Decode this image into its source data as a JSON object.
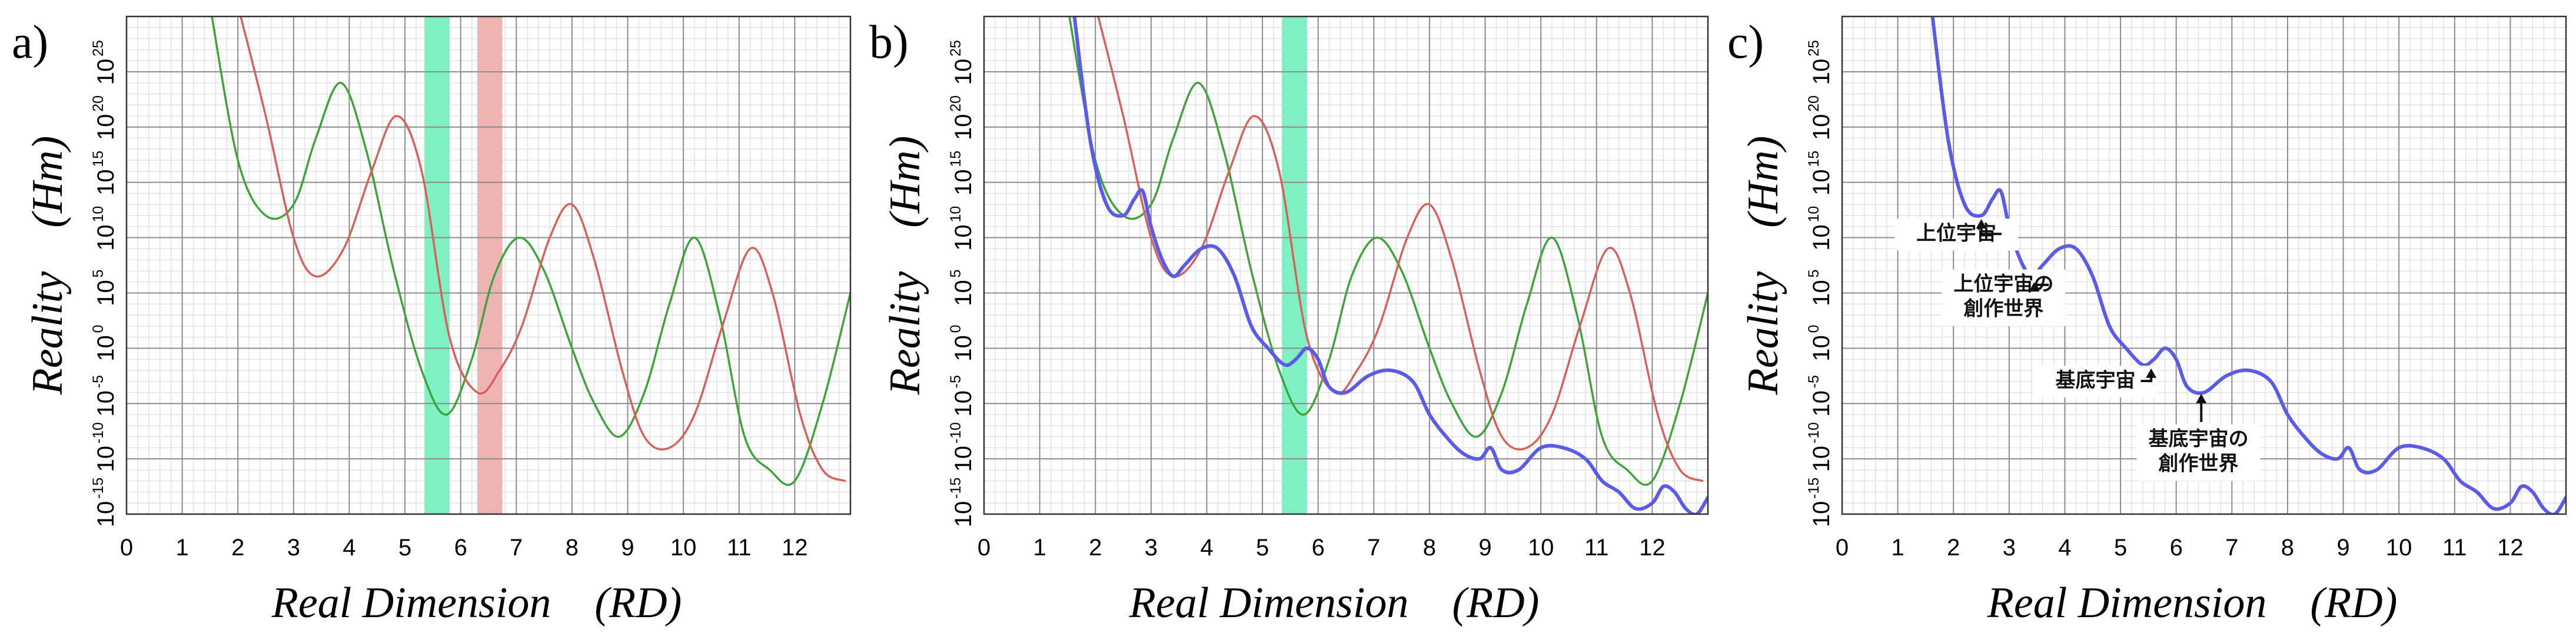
{
  "colors": {
    "red": "#d9605a",
    "green": "#3da33a",
    "blue": "#5b5bea",
    "green_band": "#7ef0c2",
    "red_band": "#eeb3b3",
    "grid_major": "#8c8c8c",
    "grid_minor": "#e2e2e2"
  },
  "chart_data": [
    {
      "type": "line",
      "panel_label": "a)",
      "xlabel": "Real Dimension　(RD)",
      "ylabel": "Reality　(Hm)",
      "xlim": [
        0,
        13
      ],
      "ylim": [
        -15,
        30
      ],
      "y_log_scale": true,
      "grid": true,
      "x_ticks": [
        "0",
        "1",
        "2",
        "3",
        "4",
        "5",
        "6",
        "7",
        "8",
        "9",
        "10",
        "11",
        "12"
      ],
      "y_ticks": [
        {
          "base": "10",
          "exp": "-15"
        },
        {
          "base": "10",
          "exp": "-10"
        },
        {
          "base": "10",
          "exp": "-5"
        },
        {
          "base": "10",
          "exp": "0"
        },
        {
          "base": "10",
          "exp": "5"
        },
        {
          "base": "10",
          "exp": "10"
        },
        {
          "base": "10",
          "exp": "15"
        },
        {
          "base": "10",
          "exp": "20"
        },
        {
          "base": "10",
          "exp": "25"
        }
      ],
      "bands": [
        {
          "x0": 5.35,
          "x1": 5.8,
          "color": "green_band"
        },
        {
          "x0": 6.3,
          "x1": 6.75,
          "color": "red_band"
        }
      ],
      "series": [
        {
          "color": "green",
          "x": [
            1.5,
            2,
            2.5,
            3,
            3.4,
            3.85,
            4.3,
            4.8,
            5.3,
            5.75,
            6.2,
            6.6,
            7.05,
            7.5,
            8,
            8.4,
            8.85,
            9.3,
            9.75,
            10.2,
            10.65,
            11.1,
            11.55,
            12,
            12.5,
            13
          ],
          "y": [
            31,
            17,
            12,
            13,
            19,
            24,
            18,
            7,
            -2,
            -6,
            -1,
            6.5,
            10,
            7,
            0,
            -5,
            -8,
            -4,
            4,
            10,
            3,
            -8,
            -11,
            -12,
            -5,
            5
          ]
        },
        {
          "color": "red",
          "x": [
            2,
            2.5,
            3,
            3.4,
            3.9,
            4.4,
            4.85,
            5.3,
            5.8,
            6.3,
            6.7,
            7.1,
            7.6,
            8,
            8.4,
            8.9,
            9.3,
            9.75,
            10.2,
            10.7,
            11.2,
            11.6,
            12.1,
            12.5,
            12.9
          ],
          "y": [
            31,
            21,
            10,
            6.5,
            9,
            16,
            21,
            16,
            1,
            -4,
            -2,
            2,
            10,
            13,
            8,
            -2,
            -8,
            -9,
            -6,
            2,
            9,
            5,
            -6,
            -11,
            -12
          ]
        }
      ],
      "annotations": []
    },
    {
      "type": "line",
      "panel_label": "b)",
      "xlabel": "Real Dimension　(RD)",
      "ylabel": "Reality　(Hm)",
      "xlim": [
        0,
        13
      ],
      "ylim": [
        -15,
        30
      ],
      "y_log_scale": true,
      "grid": true,
      "x_ticks": [
        "0",
        "1",
        "2",
        "3",
        "4",
        "5",
        "6",
        "7",
        "8",
        "9",
        "10",
        "11",
        "12"
      ],
      "y_ticks": [
        {
          "base": "10",
          "exp": "-15"
        },
        {
          "base": "10",
          "exp": "-10"
        },
        {
          "base": "10",
          "exp": "-5"
        },
        {
          "base": "10",
          "exp": "0"
        },
        {
          "base": "10",
          "exp": "5"
        },
        {
          "base": "10",
          "exp": "10"
        },
        {
          "base": "10",
          "exp": "15"
        },
        {
          "base": "10",
          "exp": "20"
        },
        {
          "base": "10",
          "exp": "25"
        }
      ],
      "bands": [
        {
          "x0": 5.35,
          "x1": 5.8,
          "color": "green_band"
        }
      ],
      "series": [
        {
          "color": "green",
          "x": [
            1.5,
            2,
            2.5,
            3,
            3.4,
            3.85,
            4.3,
            4.8,
            5.3,
            5.75,
            6.2,
            6.6,
            7.05,
            7.5,
            8,
            8.4,
            8.85,
            9.3,
            9.75,
            10.2,
            10.65,
            11.1,
            11.55,
            12,
            12.5,
            13
          ],
          "y": [
            31,
            17,
            12,
            13,
            19,
            24,
            18,
            7,
            -2,
            -6,
            -1,
            6.5,
            10,
            7,
            0,
            -5,
            -8,
            -4,
            4,
            10,
            3,
            -8,
            -11,
            -12,
            -5,
            5
          ]
        },
        {
          "color": "red",
          "x": [
            2,
            2.5,
            3,
            3.4,
            3.9,
            4.4,
            4.85,
            5.3,
            5.8,
            6.3,
            6.7,
            7.1,
            7.6,
            8,
            8.4,
            8.9,
            9.3,
            9.75,
            10.2,
            10.7,
            11.2,
            11.6,
            12.1,
            12.5,
            12.9
          ],
          "y": [
            31,
            21,
            10,
            6.5,
            9,
            16,
            21,
            16,
            1,
            -4,
            -2,
            2,
            10,
            13,
            8,
            -2,
            -8,
            -9,
            -6,
            2,
            9,
            5,
            -6,
            -11,
            -12
          ]
        },
        {
          "color": "blue",
          "x": [
            1.6,
            1.9,
            2.2,
            2.5,
            2.7,
            2.85,
            3,
            3.2,
            3.4,
            3.6,
            3.9,
            4.2,
            4.5,
            4.8,
            5.1,
            5.4,
            5.6,
            5.8,
            6,
            6.2,
            6.5,
            6.9,
            7.3,
            7.7,
            8,
            8.3,
            8.6,
            8.9,
            9.1,
            9.3,
            9.6,
            10,
            10.4,
            10.8,
            11.1,
            11.4,
            11.7,
            12,
            12.2,
            12.4,
            12.6,
            12.8,
            13
          ],
          "y": [
            31,
            19,
            13,
            12,
            13.5,
            14.2,
            11,
            8,
            6.5,
            7.5,
            9,
            9,
            6.5,
            2,
            0,
            -1.5,
            -1,
            0,
            -1,
            -3.5,
            -4,
            -2.5,
            -2,
            -3,
            -6,
            -8,
            -9.5,
            -10,
            -9,
            -11,
            -11,
            -9,
            -9,
            -10,
            -12,
            -13,
            -14.5,
            -14,
            -12.5,
            -13,
            -14.5,
            -15,
            -13.5
          ]
        }
      ],
      "annotations": []
    },
    {
      "type": "line",
      "panel_label": "c)",
      "xlabel": "Real Dimension　(RD)",
      "ylabel": "Reality　(Hm)",
      "xlim": [
        0,
        13
      ],
      "ylim": [
        -15,
        30
      ],
      "y_log_scale": true,
      "grid": true,
      "x_ticks": [
        "0",
        "1",
        "2",
        "3",
        "4",
        "5",
        "6",
        "7",
        "8",
        "9",
        "10",
        "11",
        "12"
      ],
      "y_ticks": [
        {
          "base": "10",
          "exp": "-15"
        },
        {
          "base": "10",
          "exp": "-10"
        },
        {
          "base": "10",
          "exp": "-5"
        },
        {
          "base": "10",
          "exp": "0"
        },
        {
          "base": "10",
          "exp": "5"
        },
        {
          "base": "10",
          "exp": "10"
        },
        {
          "base": "10",
          "exp": "15"
        },
        {
          "base": "10",
          "exp": "20"
        },
        {
          "base": "10",
          "exp": "25"
        }
      ],
      "bands": [],
      "series": [
        {
          "color": "blue",
          "x": [
            1.6,
            1.9,
            2.2,
            2.5,
            2.7,
            2.85,
            3,
            3.2,
            3.4,
            3.6,
            3.9,
            4.2,
            4.5,
            4.8,
            5.1,
            5.4,
            5.6,
            5.8,
            6,
            6.2,
            6.5,
            6.9,
            7.3,
            7.7,
            8,
            8.3,
            8.6,
            8.9,
            9.1,
            9.3,
            9.6,
            10,
            10.4,
            10.8,
            11.1,
            11.4,
            11.7,
            12,
            12.2,
            12.4,
            12.6,
            12.8,
            13
          ],
          "y": [
            31,
            19,
            13,
            12,
            13.5,
            14.2,
            11,
            8,
            6.5,
            7.5,
            9,
            9,
            6.5,
            2,
            0,
            -1.5,
            -1,
            0,
            -1,
            -3.5,
            -4,
            -2.5,
            -2,
            -3,
            -6,
            -8,
            -9.5,
            -10,
            -9,
            -11,
            -11,
            -9,
            -9,
            -10,
            -12,
            -13,
            -14.5,
            -14,
            -12.5,
            -13,
            -14.5,
            -15,
            -13.5
          ]
        }
      ],
      "annotations": [
        {
          "lines": [
            "上位宇宙"
          ],
          "tx": 2.05,
          "ty": 9.8,
          "ax": 2.5,
          "ay": 12.1,
          "side": "right"
        },
        {
          "lines": [
            "上位宇宙の",
            "創作世界"
          ],
          "tx": 2.9,
          "ty": 5.2,
          "ax": 3.45,
          "ay": 6.4,
          "side": "right"
        },
        {
          "lines": [
            "基底宇宙"
          ],
          "tx": 4.55,
          "ty": -3.5,
          "ax": 5.55,
          "ay": -1.4,
          "side": "right"
        },
        {
          "lines": [
            "基底宇宙の",
            "創作世界"
          ],
          "tx": 6.4,
          "ty": -8.8,
          "ax": 6.45,
          "ay": -3.8,
          "side": "up"
        }
      ]
    }
  ]
}
